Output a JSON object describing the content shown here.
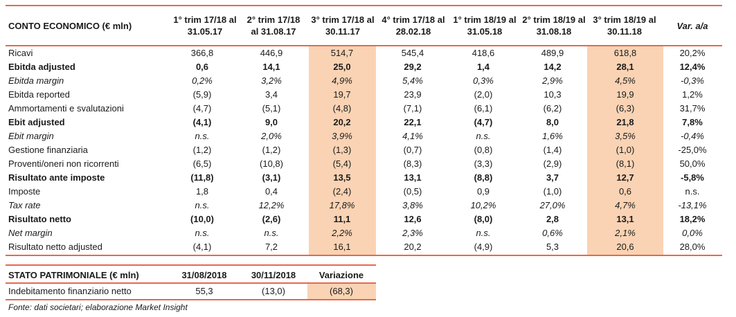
{
  "income": {
    "title": "CONTO ECONOMICO (€ mln)",
    "var_header": "Var. a/a",
    "periods": [
      {
        "line1": "1° trim 17/18 al",
        "line2": "31.05.17"
      },
      {
        "line1": "2° trim 17/18",
        "line2": "al 31.08.17"
      },
      {
        "line1": "3° trim 17/18 al",
        "line2": "30.11.17"
      },
      {
        "line1": "4° trim 17/18 al",
        "line2": "28.02.18"
      },
      {
        "line1": "1° trim 18/19 al",
        "line2": "31.05.18"
      },
      {
        "line1": "2° trim 18/19 al",
        "line2": "31.08.18"
      },
      {
        "line1": "3° trim 18/19 al",
        "line2": "30.11.18"
      }
    ],
    "rows": [
      {
        "label": "Ricavi",
        "style": "normal",
        "values": [
          "366,8",
          "446,9",
          "514,7",
          "545,4",
          "418,6",
          "489,9",
          "618,8",
          "20,2%"
        ]
      },
      {
        "label": "Ebitda adjusted",
        "style": "bold",
        "values": [
          "0,6",
          "14,1",
          "25,0",
          "29,2",
          "1,4",
          "14,2",
          "28,1",
          "12,4%"
        ]
      },
      {
        "label": "Ebitda margin",
        "style": "italic",
        "values": [
          "0,2%",
          "3,2%",
          "4,9%",
          "5,4%",
          "0,3%",
          "2,9%",
          "4,5%",
          "-0,3%"
        ]
      },
      {
        "label": "Ebitda reported",
        "style": "normal",
        "values": [
          "(5,9)",
          "3,4",
          "19,7",
          "23,9",
          "(2,0)",
          "10,3",
          "19,9",
          "1,2%"
        ]
      },
      {
        "label": "Ammortamenti e svalutazioni",
        "style": "normal",
        "values": [
          "(4,7)",
          "(5,1)",
          "(4,8)",
          "(7,1)",
          "(6,1)",
          "(6,2)",
          "(6,3)",
          "31,7%"
        ]
      },
      {
        "label": "Ebit adjusted",
        "style": "bold",
        "values": [
          "(4,1)",
          "9,0",
          "20,2",
          "22,1",
          "(4,7)",
          "8,0",
          "21,8",
          "7,8%"
        ]
      },
      {
        "label": "Ebit margin",
        "style": "italic",
        "values": [
          "n.s.",
          "2,0%",
          "3,9%",
          "4,1%",
          "n.s.",
          "1,6%",
          "3,5%",
          "-0,4%"
        ]
      },
      {
        "label": "Gestione finanziaria",
        "style": "normal",
        "values": [
          "(1,2)",
          "(1,2)",
          "(1,3)",
          "(0,7)",
          "(0,8)",
          "(1,4)",
          "(1,0)",
          "-25,0%"
        ]
      },
      {
        "label": "Proventi/oneri non ricorrenti",
        "style": "normal",
        "values": [
          "(6,5)",
          "(10,8)",
          "(5,4)",
          "(8,3)",
          "(3,3)",
          "(2,9)",
          "(8,1)",
          "50,0%"
        ]
      },
      {
        "label": "Risultato ante imposte",
        "style": "bold",
        "values": [
          "(11,8)",
          "(3,1)",
          "13,5",
          "13,1",
          "(8,8)",
          "3,7",
          "12,7",
          "-5,8%"
        ]
      },
      {
        "label": "Imposte",
        "style": "normal",
        "values": [
          "1,8",
          "0,4",
          "(2,4)",
          "(0,5)",
          "0,9",
          "(1,0)",
          "0,6",
          "n.s."
        ]
      },
      {
        "label": "Tax rate",
        "style": "italic",
        "values": [
          "n.s.",
          "12,2%",
          "17,8%",
          "3,8%",
          "10,2%",
          "27,0%",
          "4,7%",
          "-13,1%"
        ]
      },
      {
        "label": "Risultato netto",
        "style": "bold",
        "values": [
          "(10,0)",
          "(2,6)",
          "11,1",
          "12,6",
          "(8,0)",
          "2,8",
          "13,1",
          "18,2%"
        ]
      },
      {
        "label": "Net margin",
        "style": "italic",
        "values": [
          "n.s.",
          "n.s.",
          "2,2%",
          "2,3%",
          "n.s.",
          "0,6%",
          "2,1%",
          "0,0%"
        ]
      },
      {
        "label": "Risultato netto adjusted",
        "style": "normal",
        "values": [
          "(4,1)",
          "7,2",
          "16,1",
          "20,2",
          "(4,9)",
          "5,3",
          "20,6",
          "28,0%"
        ]
      }
    ]
  },
  "balance": {
    "title": "STATO PATRIMONIALE (€ mln)",
    "headers": [
      "31/08/2018",
      "30/11/2018",
      "Variazione"
    ],
    "row": {
      "label": "Indebitamento finanziario netto",
      "values": [
        "55,3",
        "(13,0)",
        "(68,3)"
      ]
    }
  },
  "footnote": "Fonte: dati societari; elaborazione Market Insight",
  "colors": {
    "accent_rule": "#e5694d",
    "highlight": "#f9d3b4"
  }
}
